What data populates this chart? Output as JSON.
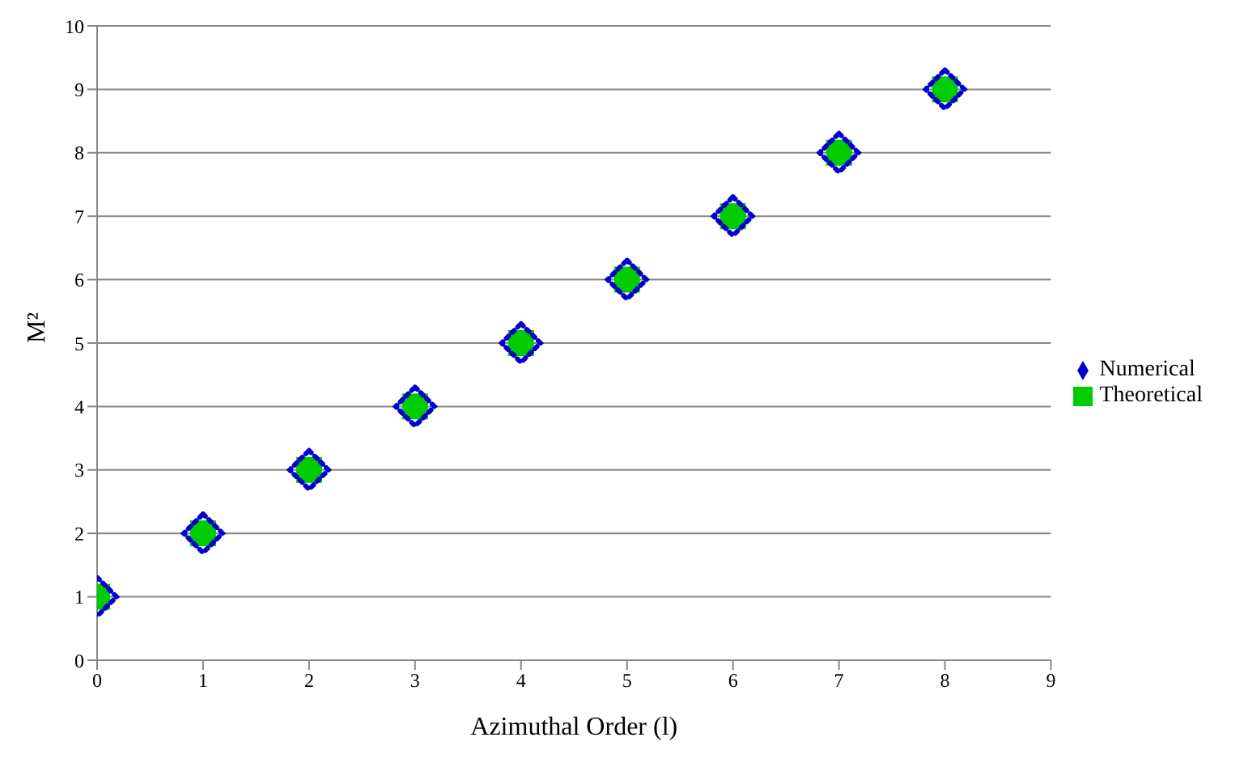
{
  "chart_data": {
    "type": "scatter",
    "xlabel": "Azimuthal Order (l)",
    "ylabel": "M²",
    "x": [
      0,
      1,
      2,
      3,
      4,
      5,
      6,
      7,
      8
    ],
    "series": [
      {
        "name": "Theoretical",
        "color": "#00cc00",
        "marker": "square",
        "values": [
          1,
          2,
          3,
          4,
          5,
          6,
          7,
          8,
          9
        ]
      },
      {
        "name": "Numerical",
        "color": "#0000cc",
        "marker": "diamond",
        "values": [
          1,
          2,
          3,
          4,
          5,
          6,
          7,
          8,
          9
        ]
      }
    ],
    "xlim": [
      0,
      9
    ],
    "xticks": [
      0,
      1,
      2,
      3,
      4,
      5,
      6,
      7,
      8,
      9
    ],
    "ylim": [
      0,
      10
    ],
    "yticks": [
      0,
      1,
      2,
      3,
      4,
      5,
      6,
      7,
      8,
      9,
      10
    ],
    "grid": "y",
    "legend": "right"
  }
}
